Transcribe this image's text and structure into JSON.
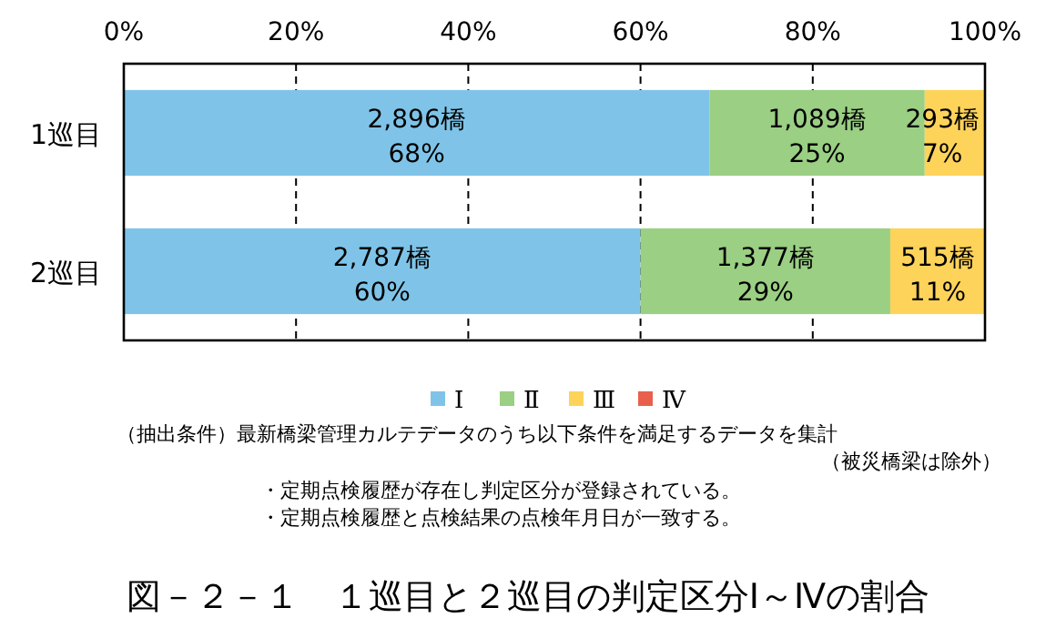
{
  "chart_data": {
    "type": "bar",
    "orientation": "horizontal",
    "stacked": true,
    "title": "図－２－１　１巡目と２巡目の判定区分Ⅰ～Ⅳの割合",
    "categories": [
      "1巡目",
      "2巡目"
    ],
    "series": [
      {
        "name": "Ⅰ",
        "color": "#7fc4e8",
        "values": [
          68,
          60
        ],
        "value_labels": [
          "2,896橋\n68%",
          "2,787橋\n60%"
        ]
      },
      {
        "name": "Ⅱ",
        "color": "#9bcf84",
        "values": [
          25,
          29
        ],
        "value_labels": [
          "1,089橋\n25%",
          "1,377橋\n29%"
        ]
      },
      {
        "name": "Ⅲ",
        "color": "#fdd35a",
        "values": [
          7,
          11
        ],
        "value_labels": [
          "293橋\n7%",
          "515橋\n11%"
        ]
      },
      {
        "name": "Ⅳ",
        "color": "#e8604c",
        "values": [
          0,
          0
        ],
        "value_labels": [
          null,
          null
        ]
      }
    ],
    "xlim": [
      0,
      100
    ],
    "xticks": [
      {
        "value": 0,
        "label": "0%"
      },
      {
        "value": 20,
        "label": "20%"
      },
      {
        "value": 40,
        "label": "40%"
      },
      {
        "value": 60,
        "label": "60%"
      },
      {
        "value": 80,
        "label": "80%"
      },
      {
        "value": 100,
        "label": "100%"
      }
    ],
    "grid": "x",
    "legend": "bottom",
    "annotations": [
      "（抽出条件）最新橋梁管理カルテデータのうち以下条件を満足するデータを集計",
      "（被災橋梁は除外）",
      "・定期点検履歴が存在し判定区分が登録されている。",
      "・定期点検履歴と点検結果の点検年月日が一致する。"
    ]
  }
}
